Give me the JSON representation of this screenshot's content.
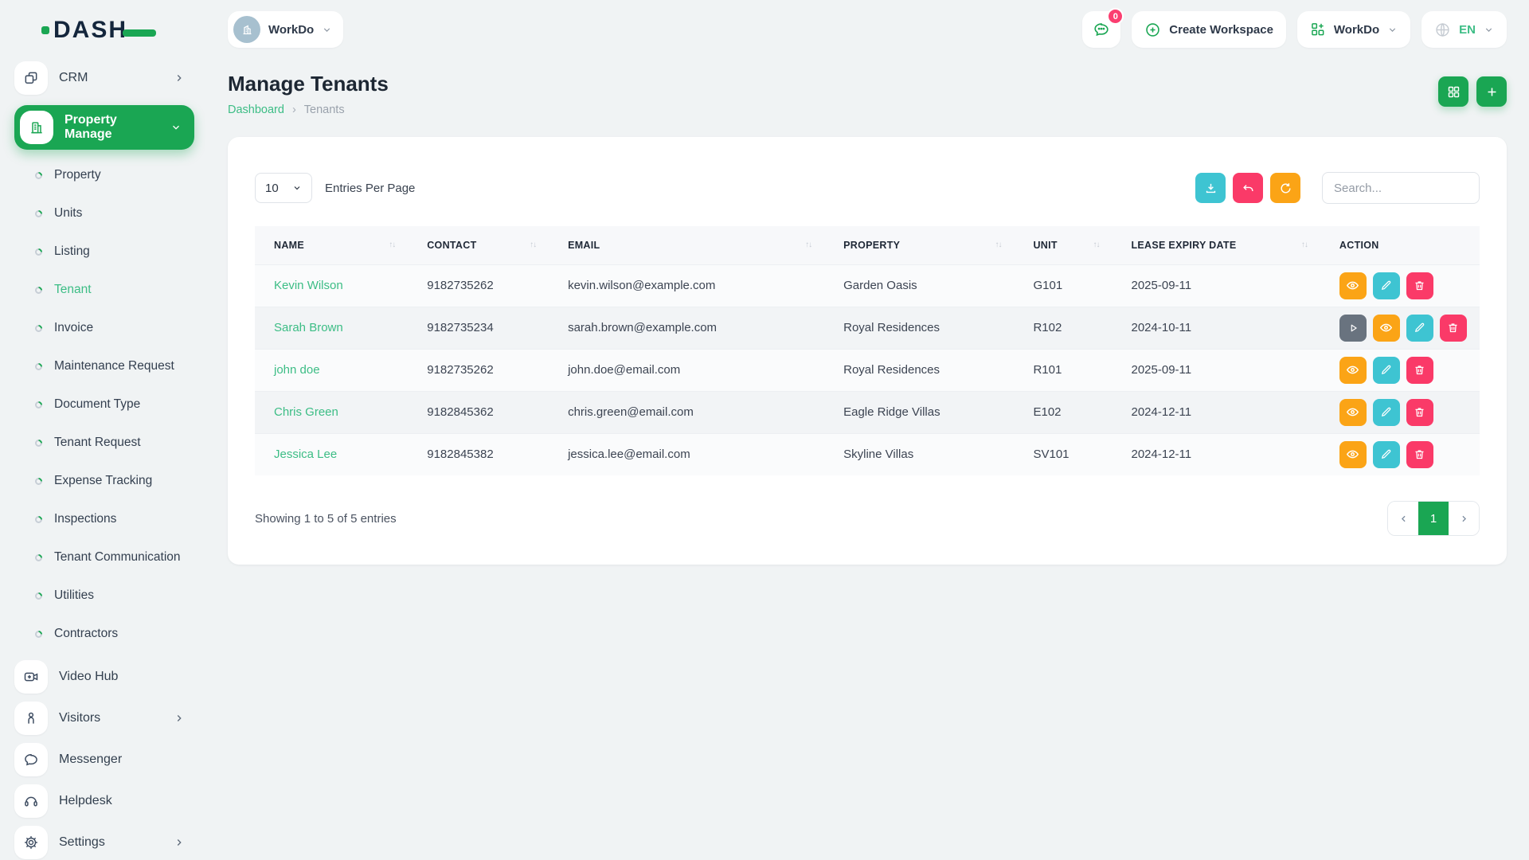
{
  "colors": {
    "primary": "#1aa653",
    "link": "#3cbd85",
    "teal": "#3ec4d2",
    "pink": "#fa3a68",
    "orange": "#fba416",
    "slate": "#69737f",
    "badge": "#fb3e70"
  },
  "brand": {
    "logo": "DASH"
  },
  "topbar": {
    "workspace_chip": "WorkDo",
    "chat_badge": "0",
    "create_workspace": "Create Workspace",
    "app_dropdown": "WorkDo",
    "language": "EN"
  },
  "sidebar": {
    "crm": "CRM",
    "property_manage": "Property Manage",
    "sub_items": [
      {
        "label": "Property",
        "active": false
      },
      {
        "label": "Units",
        "active": false
      },
      {
        "label": "Listing",
        "active": false
      },
      {
        "label": "Tenant",
        "active": true
      },
      {
        "label": "Invoice",
        "active": false
      },
      {
        "label": "Maintenance Request",
        "active": false
      },
      {
        "label": "Document Type",
        "active": false
      },
      {
        "label": "Tenant Request",
        "active": false
      },
      {
        "label": "Expense Tracking",
        "active": false
      },
      {
        "label": "Inspections",
        "active": false
      },
      {
        "label": "Tenant Communication",
        "active": false
      },
      {
        "label": "Utilities",
        "active": false
      },
      {
        "label": "Contractors",
        "active": false
      }
    ],
    "video_hub": "Video Hub",
    "visitors": "Visitors",
    "messenger": "Messenger",
    "helpdesk": "Helpdesk",
    "settings": "Settings"
  },
  "page": {
    "title": "Manage Tenants",
    "breadcrumb_root": "Dashboard",
    "breadcrumb_sep": "›",
    "breadcrumb_current": "Tenants"
  },
  "controls": {
    "entries_value": "10",
    "entries_label": "Entries Per Page",
    "search_placeholder": "Search..."
  },
  "table": {
    "sort_glyph": "↑↓",
    "columns": [
      {
        "label": "NAME",
        "sortable": true
      },
      {
        "label": "CONTACT",
        "sortable": true
      },
      {
        "label": "EMAIL",
        "sortable": true
      },
      {
        "label": "PROPERTY",
        "sortable": true
      },
      {
        "label": "UNIT",
        "sortable": true
      },
      {
        "label": "LEASE EXPIRY DATE",
        "sortable": true
      },
      {
        "label": "ACTION",
        "sortable": false
      }
    ],
    "rows": [
      {
        "name": "Kevin Wilson",
        "contact": "9182735262",
        "email": "kevin.wilson@example.com",
        "property": "Garden Oasis",
        "unit": "G101",
        "lease_expiry": "2025-09-11",
        "actions": [
          "view",
          "edit",
          "delete"
        ]
      },
      {
        "name": "Sarah Brown",
        "contact": "9182735234",
        "email": "sarah.brown@example.com",
        "property": "Royal Residences",
        "unit": "R102",
        "lease_expiry": "2024-10-11",
        "actions": [
          "play",
          "view",
          "edit",
          "delete"
        ]
      },
      {
        "name": "john doe",
        "contact": "9182735262",
        "email": "john.doe@email.com",
        "property": "Royal Residences",
        "unit": "R101",
        "lease_expiry": "2025-09-11",
        "actions": [
          "view",
          "edit",
          "delete"
        ]
      },
      {
        "name": "Chris Green",
        "contact": "9182845362",
        "email": "chris.green@email.com",
        "property": "Eagle Ridge Villas",
        "unit": "E102",
        "lease_expiry": "2024-12-11",
        "actions": [
          "view",
          "edit",
          "delete"
        ]
      },
      {
        "name": "Jessica Lee",
        "contact": "9182845382",
        "email": "jessica.lee@email.com",
        "property": "Skyline Villas",
        "unit": "SV101",
        "lease_expiry": "2024-12-11",
        "actions": [
          "view",
          "edit",
          "delete"
        ]
      }
    ]
  },
  "footer": {
    "showing": "Showing 1 to 5 of 5 entries",
    "page": "1"
  }
}
